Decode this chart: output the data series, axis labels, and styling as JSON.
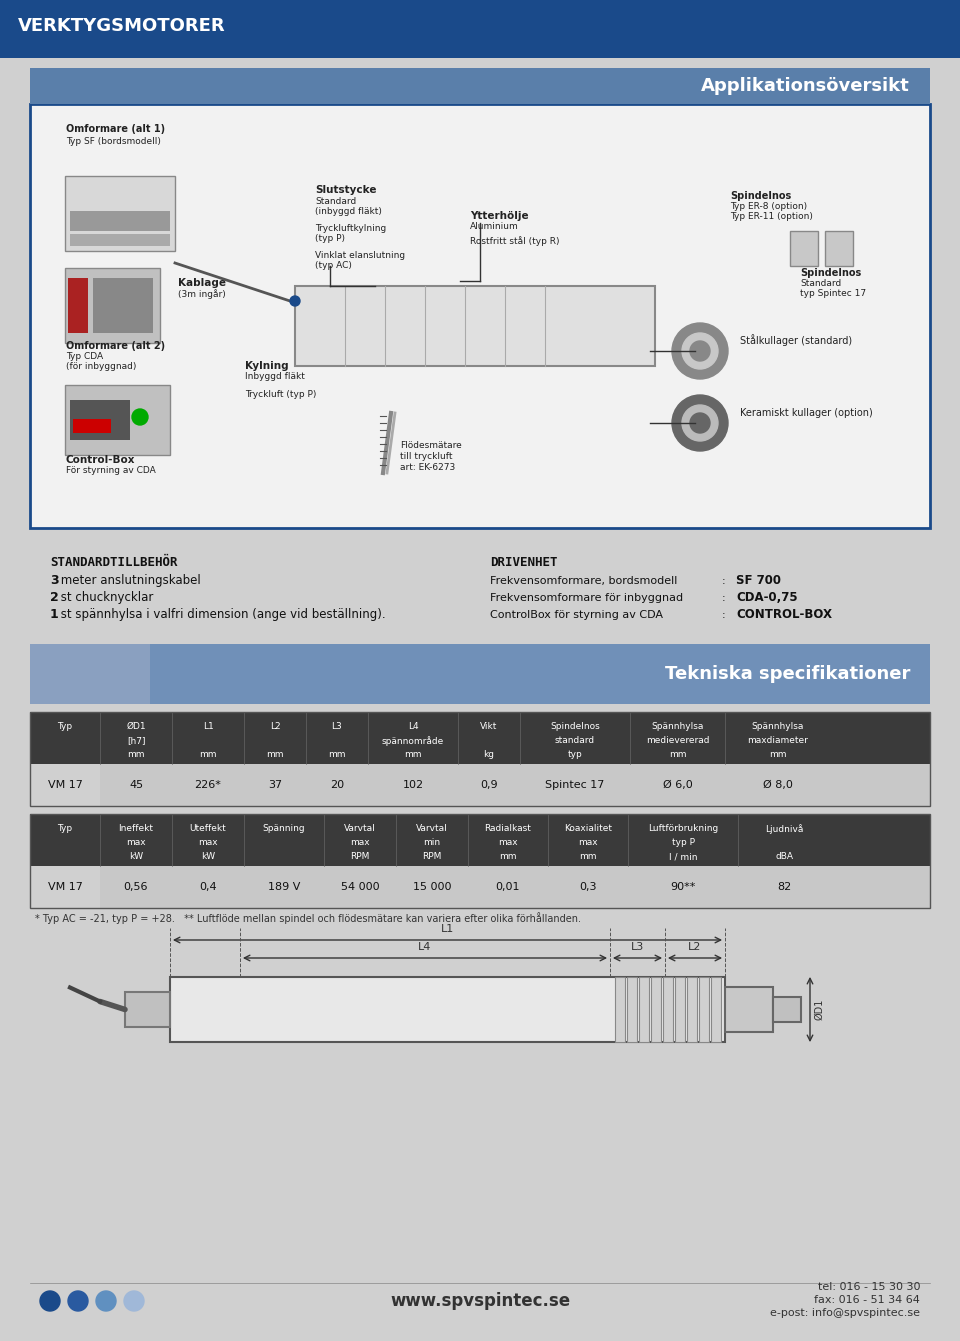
{
  "page_bg": "#d0d0d0",
  "header_bg": "#1a4a8a",
  "header_text": "VERKTYGSMOTORER",
  "section1_title": "Applikationsöversikt",
  "section1_bg": "#5a7faa",
  "std_title": "STANDARDTILLBEHÖR",
  "std_items": [
    "3 meter anslutningskabel",
    "2 st chucknycklar",
    "1 st spännhylsa i valfri dimension (ange vid beställning)."
  ],
  "std_bold_chars": [
    "3",
    "2",
    "1"
  ],
  "drivenhet_title": "DRIVENHET",
  "drivenhet_items": [
    [
      "Frekvensomformare, bordsmodell",
      ": SF 700"
    ],
    [
      "Frekvensomformare för inbyggnad",
      ": CDA-0,75"
    ],
    [
      "ControlBox för styrning av CDA   ",
      ": CONTROL-BOX"
    ]
  ],
  "section2_title": "Tekniska specifikationer",
  "table1_header_bg": "#3a3a3a",
  "table1_row_bg": "#c8c8c8",
  "table1_cols": [
    "Typ",
    "ØD1\n[h7]\nmm",
    "L1\n\nmm",
    "L2\n\nmm",
    "L3\n\nmm",
    "L4\nspännområde\nmm",
    "Vikt\n\nkg",
    "Spindelnos\nstandard\ntyp",
    "Spännhylsa\nmedievererad\nmm",
    "Spännhylsa\nmaxdiameter\nmm"
  ],
  "table1_row": [
    "VM 17",
    "45",
    "226*",
    "37",
    "20",
    "102",
    "0,9",
    "Spintec 17",
    "Ø 6,0",
    "Ø 8,0"
  ],
  "table2_header_bg": "#3a3a3a",
  "table2_row_bg": "#c8c8c8",
  "table2_cols": [
    "Typ",
    "Ineffekt\nmax\nkW",
    "Uteffekt\nmax\nkW",
    "Spänning\n\n",
    "Varvtal\nmax\nRPM",
    "Varvtal\nmin\nRPM",
    "Radialkast\nmax\nmm",
    "Koaxialitet\nmax\nmm",
    "Luftförbrukning\ntyp P\nl / min",
    "Ljudnivå\n\ndBA"
  ],
  "table2_row": [
    "VM 17",
    "0,56",
    "0,4",
    "189 V",
    "54 000",
    "15 000",
    "0,01",
    "0,3",
    "90**",
    "82"
  ],
  "footnote": "* Typ AC = -21, typ P = +28.   ** Luftflöde mellan spindel och flödesmätare kan variera efter olika förhållanden.",
  "footer_colors": [
    "#1a4a8a",
    "#2a5aa0",
    "#6090c0",
    "#a0b8d8"
  ],
  "footer_website": "www.spvspintec.se",
  "footer_tel": "tel: 016 - 15 30 30",
  "footer_fax": "fax: 016 - 51 34 64",
  "footer_email": "e-post: info@spvspintec.se",
  "accent_blue": "#1a4a8a",
  "light_blue": "#4a7ab5"
}
